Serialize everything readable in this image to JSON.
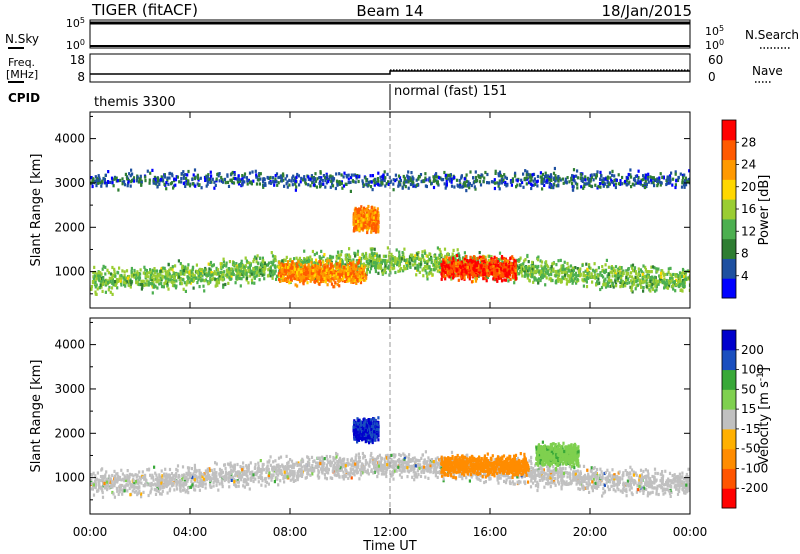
{
  "header": {
    "title": "TIGER (fitACF)",
    "beam": "Beam 14",
    "date": "18/Jan/2015"
  },
  "scan_panels": {
    "nsky_label": "N.Sky",
    "nsky_ticks": [
      "10^5",
      "10^0"
    ],
    "nsearch_label": "N.Search",
    "nsearch_ticks": [
      "10^5",
      "10^0"
    ],
    "freq_label": "Freq.",
    "freq_unit": "[MHz]",
    "freq_ticks": [
      "18",
      "8"
    ],
    "nave_label": "Nave",
    "nave_ticks": [
      "60",
      "0"
    ],
    "cpid_label": "CPID",
    "cpid_modes": [
      {
        "name": "themis 3300",
        "start_hour": 0
      },
      {
        "name": "normal (fast) 151",
        "start_hour": 12
      }
    ]
  },
  "x_axis": {
    "label": "Time UT",
    "ticks": [
      "00:00",
      "04:00",
      "08:00",
      "12:00",
      "16:00",
      "20:00",
      "00:00"
    ],
    "range_hours": [
      0,
      24
    ]
  },
  "chart_data": [
    {
      "type": "heatmap",
      "title": "",
      "xlabel": "Time UT",
      "ylabel": "Slant Range [km]",
      "ylim": [
        180,
        4600
      ],
      "yticks": [
        "1000",
        "2000",
        "3000",
        "4000"
      ],
      "colorbar": {
        "label": "Power [dB]",
        "ticks": [
          "28",
          "24",
          "20",
          "16",
          "12",
          "8",
          "4"
        ],
        "range": [
          0,
          32
        ],
        "colors": [
          "#0000ff",
          "#1e50a0",
          "#2e7d32",
          "#4caf50",
          "#9acd32",
          "#ffd700",
          "#ff9900",
          "#ff5a00",
          "#ff0000"
        ]
      },
      "features": [
        {
          "t_start": 0,
          "t_end": 24,
          "range_center_km": 1050,
          "value": 14
        },
        {
          "t_start": 7.5,
          "t_end": 11,
          "range_center_km": 1000,
          "value": 24
        },
        {
          "t_start": 14,
          "t_end": 17,
          "range_center_km": 1100,
          "value": 28
        },
        {
          "t_start": 10.5,
          "t_end": 11.5,
          "range_center_km": 2200,
          "value": 24
        },
        {
          "t_start": 0,
          "t_end": 24,
          "range_center_km": 3100,
          "value": 6
        }
      ]
    },
    {
      "type": "heatmap",
      "title": "",
      "xlabel": "Time UT",
      "ylabel": "Slant Range [km]",
      "ylim": [
        180,
        4600
      ],
      "yticks": [
        "1000",
        "2000",
        "3000",
        "4000"
      ],
      "colorbar": {
        "label": "Velocity [m s^-1]",
        "ticks": [
          "200",
          "100",
          "50",
          "15",
          "-15",
          "-50",
          "-100",
          "-200"
        ],
        "range": [
          -250,
          250
        ],
        "colors": [
          "#ff0000",
          "#ff5500",
          "#ff8c00",
          "#ffb000",
          "#c0c0c0",
          "#7fd04f",
          "#38a838",
          "#1a4fbf",
          "#0000cc"
        ]
      },
      "features": [
        {
          "t_start": 0,
          "t_end": 24,
          "range_center_km": 1100,
          "value": 0
        },
        {
          "t_start": 10.5,
          "t_end": 11.5,
          "range_center_km": 2100,
          "value": 200
        },
        {
          "t_start": 14,
          "t_end": 17.5,
          "range_center_km": 1300,
          "value": -75
        },
        {
          "t_start": 17.8,
          "t_end": 19.5,
          "range_center_km": 1550,
          "value": 40
        }
      ]
    }
  ]
}
